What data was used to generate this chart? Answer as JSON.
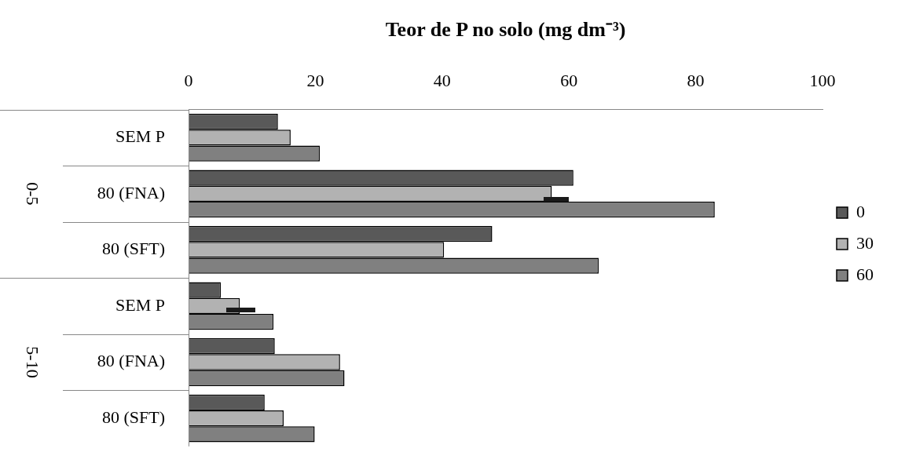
{
  "chart_data": {
    "type": "bar",
    "orientation": "horizontal",
    "xlabel": "Teor de P no solo (mg dm⁻³)",
    "categories": [
      "SEM P",
      "80 (FNA)",
      "80 (SFT)",
      "SEM P",
      "80 (FNA)",
      "80 (SFT)"
    ],
    "series": [
      {
        "name": "0",
        "color": "#595959",
        "values": [
          14.1,
          60.7,
          47.9,
          5.1,
          13.6,
          12.0
        ]
      },
      {
        "name": "30",
        "color": "#b2b2b2",
        "values": [
          16.1,
          57.3,
          40.3,
          8.1,
          23.9,
          15.0
        ]
      },
      {
        "name": "60",
        "color": "#808080",
        "values": [
          20.7,
          83.0,
          64.7,
          13.4,
          24.6,
          19.9
        ]
      }
    ],
    "annotations": [
      "0-5",
      "5-10"
    ],
    "xlim": [
      0,
      100
    ],
    "xticks": [
      0,
      20,
      40,
      60,
      80,
      100
    ],
    "grid": false,
    "legend": "right"
  }
}
